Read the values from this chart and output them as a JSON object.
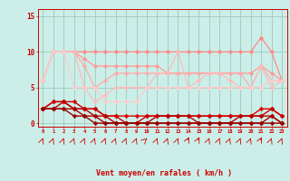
{
  "x": [
    0,
    1,
    2,
    3,
    4,
    5,
    6,
    7,
    8,
    9,
    10,
    11,
    12,
    13,
    14,
    15,
    16,
    17,
    18,
    19,
    20,
    21,
    22,
    23
  ],
  "lines": [
    {
      "y": [
        6,
        10,
        10,
        10,
        10,
        10,
        10,
        10,
        10,
        10,
        10,
        10,
        10,
        10,
        10,
        10,
        10,
        10,
        10,
        10,
        10,
        12,
        10,
        6
      ],
      "color": "#ff8888",
      "lw": 0.9
    },
    {
      "y": [
        6,
        10,
        10,
        10,
        9,
        8,
        8,
        8,
        8,
        8,
        8,
        8,
        7,
        7,
        7,
        7,
        7,
        7,
        7,
        7,
        7,
        8,
        7,
        6
      ],
      "color": "#ff9999",
      "lw": 0.9
    },
    {
      "y": [
        6,
        10,
        10,
        10,
        8,
        5,
        6,
        7,
        7,
        7,
        7,
        7,
        7,
        7,
        7,
        7,
        7,
        7,
        7,
        7,
        5,
        8,
        6,
        6
      ],
      "color": "#ffaaaa",
      "lw": 0.9
    },
    {
      "y": [
        6,
        10,
        10,
        10,
        5,
        3,
        4,
        5,
        5,
        5,
        5,
        7,
        7,
        10,
        5,
        6,
        7,
        7,
        6,
        5,
        5,
        8,
        5,
        6
      ],
      "color": "#ffbbbb",
      "lw": 0.9
    },
    {
      "y": [
        6,
        10,
        10,
        5,
        5,
        5,
        3,
        3,
        3,
        3,
        5,
        5,
        5,
        5,
        5,
        5,
        5,
        5,
        5,
        5,
        5,
        5,
        6,
        6
      ],
      "color": "#ffcccc",
      "lw": 0.9
    },
    {
      "y": [
        2,
        3,
        3,
        2,
        2,
        2,
        1,
        1,
        1,
        1,
        1,
        1,
        1,
        1,
        1,
        1,
        1,
        1,
        1,
        1,
        1,
        2,
        2,
        1
      ],
      "color": "#dd0000",
      "lw": 1.0
    },
    {
      "y": [
        2,
        3,
        3,
        3,
        2,
        2,
        1,
        1,
        0,
        0,
        1,
        1,
        1,
        1,
        1,
        1,
        1,
        1,
        1,
        1,
        1,
        1,
        2,
        1
      ],
      "color": "#cc0000",
      "lw": 1.0
    },
    {
      "y": [
        2,
        2,
        3,
        2,
        2,
        1,
        1,
        0,
        0,
        0,
        0,
        1,
        1,
        1,
        1,
        0,
        0,
        0,
        0,
        1,
        1,
        1,
        1,
        0
      ],
      "color": "#bb0000",
      "lw": 1.0
    },
    {
      "y": [
        2,
        2,
        2,
        2,
        1,
        1,
        0,
        0,
        0,
        0,
        0,
        0,
        0,
        0,
        0,
        0,
        0,
        0,
        0,
        0,
        0,
        0,
        1,
        0
      ],
      "color": "#aa0000",
      "lw": 1.0
    },
    {
      "y": [
        2,
        2,
        2,
        1,
        1,
        0,
        0,
        0,
        0,
        0,
        0,
        0,
        0,
        0,
        0,
        0,
        0,
        0,
        0,
        0,
        0,
        0,
        0,
        0
      ],
      "color": "#990000",
      "lw": 1.0
    }
  ],
  "bg_color": "#cceee8",
  "grid_color": "#99ccbb",
  "axis_color": "#cc0000",
  "tick_color": "#cc0000",
  "xlabel": "Vent moyen/en rafales ( km/h )",
  "ylim": [
    0,
    15
  ],
  "xlim": [
    0,
    23
  ],
  "yticks": [
    0,
    5,
    10,
    15
  ],
  "xticks": [
    0,
    1,
    2,
    3,
    4,
    5,
    6,
    7,
    8,
    9,
    10,
    11,
    12,
    13,
    14,
    15,
    16,
    17,
    18,
    19,
    20,
    21,
    22,
    23
  ],
  "font_color": "#cc0000",
  "marker_size": 2.5
}
